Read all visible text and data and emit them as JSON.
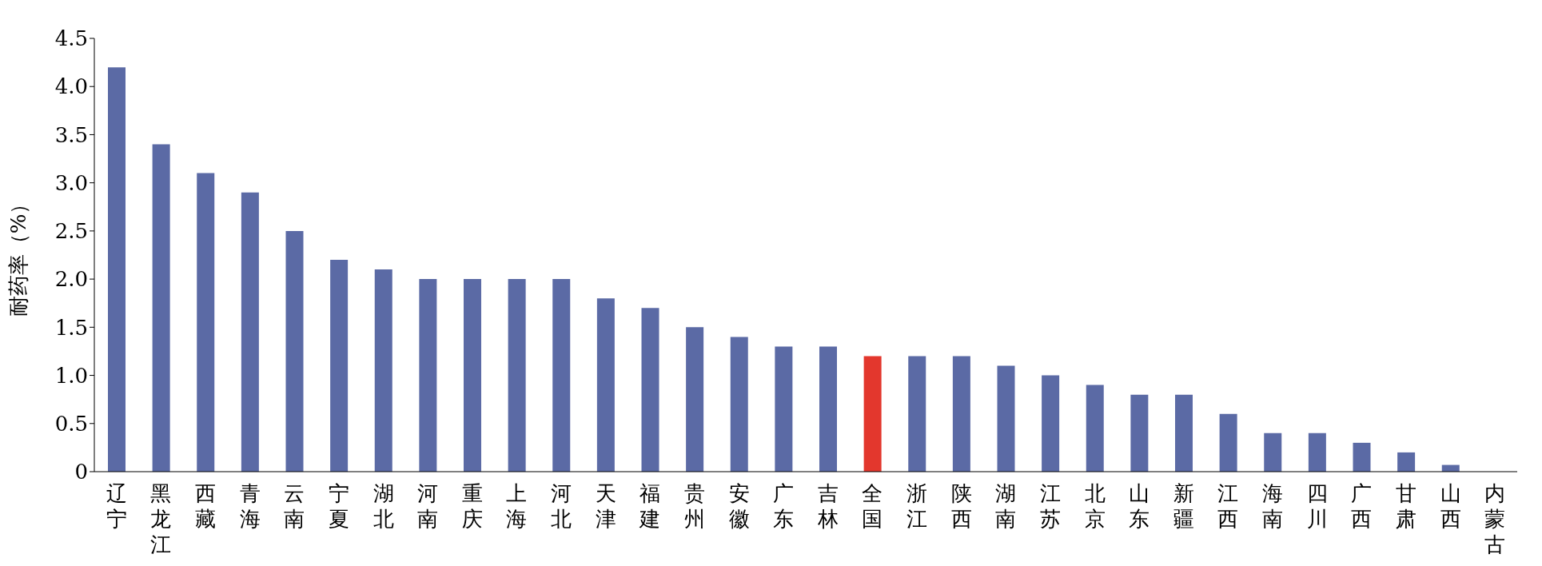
{
  "chart_data": {
    "type": "bar",
    "ylabel": "耐药率（%）",
    "categories": [
      "辽宁",
      "黑龙江",
      "西藏",
      "青海",
      "云南",
      "宁夏",
      "湖北",
      "河南",
      "重庆",
      "上海",
      "河北",
      "天津",
      "福建",
      "贵州",
      "安徽",
      "广东",
      "吉林",
      "全国",
      "浙江",
      "陕西",
      "湖南",
      "江苏",
      "北京",
      "山东",
      "新疆",
      "江西",
      "海南",
      "四川",
      "广西",
      "甘肃",
      "山西",
      "内蒙古"
    ],
    "values": [
      4.2,
      3.4,
      3.1,
      2.9,
      2.5,
      2.2,
      2.1,
      2.0,
      2.0,
      2.0,
      2.0,
      1.8,
      1.7,
      1.5,
      1.4,
      1.3,
      1.3,
      1.2,
      1.2,
      1.2,
      1.1,
      1.0,
      0.9,
      0.8,
      0.8,
      0.6,
      0.4,
      0.4,
      0.3,
      0.2,
      0.07,
      0
    ],
    "colors": [
      "#5b6aa5",
      "#5b6aa5",
      "#5b6aa5",
      "#5b6aa5",
      "#5b6aa5",
      "#5b6aa5",
      "#5b6aa5",
      "#5b6aa5",
      "#5b6aa5",
      "#5b6aa5",
      "#5b6aa5",
      "#5b6aa5",
      "#5b6aa5",
      "#5b6aa5",
      "#5b6aa5",
      "#5b6aa5",
      "#5b6aa5",
      "#e3372d",
      "#5b6aa5",
      "#5b6aa5",
      "#5b6aa5",
      "#5b6aa5",
      "#5b6aa5",
      "#5b6aa5",
      "#5b6aa5",
      "#5b6aa5",
      "#5b6aa5",
      "#5b6aa5",
      "#5b6aa5",
      "#5b6aa5",
      "#5b6aa5",
      "#5b6aa5"
    ],
    "ylim": [
      0,
      4.5
    ],
    "yticks": [
      0,
      0.5,
      {
        "value": 1,
        "label": "1.0"
      },
      1.5,
      {
        "value": 2,
        "label": "2.0"
      },
      2.5,
      {
        "value": 3,
        "label": "3.0"
      },
      3.5,
      {
        "value": 4,
        "label": "4.0"
      },
      4.5
    ],
    "grid": false,
    "legend": false
  }
}
